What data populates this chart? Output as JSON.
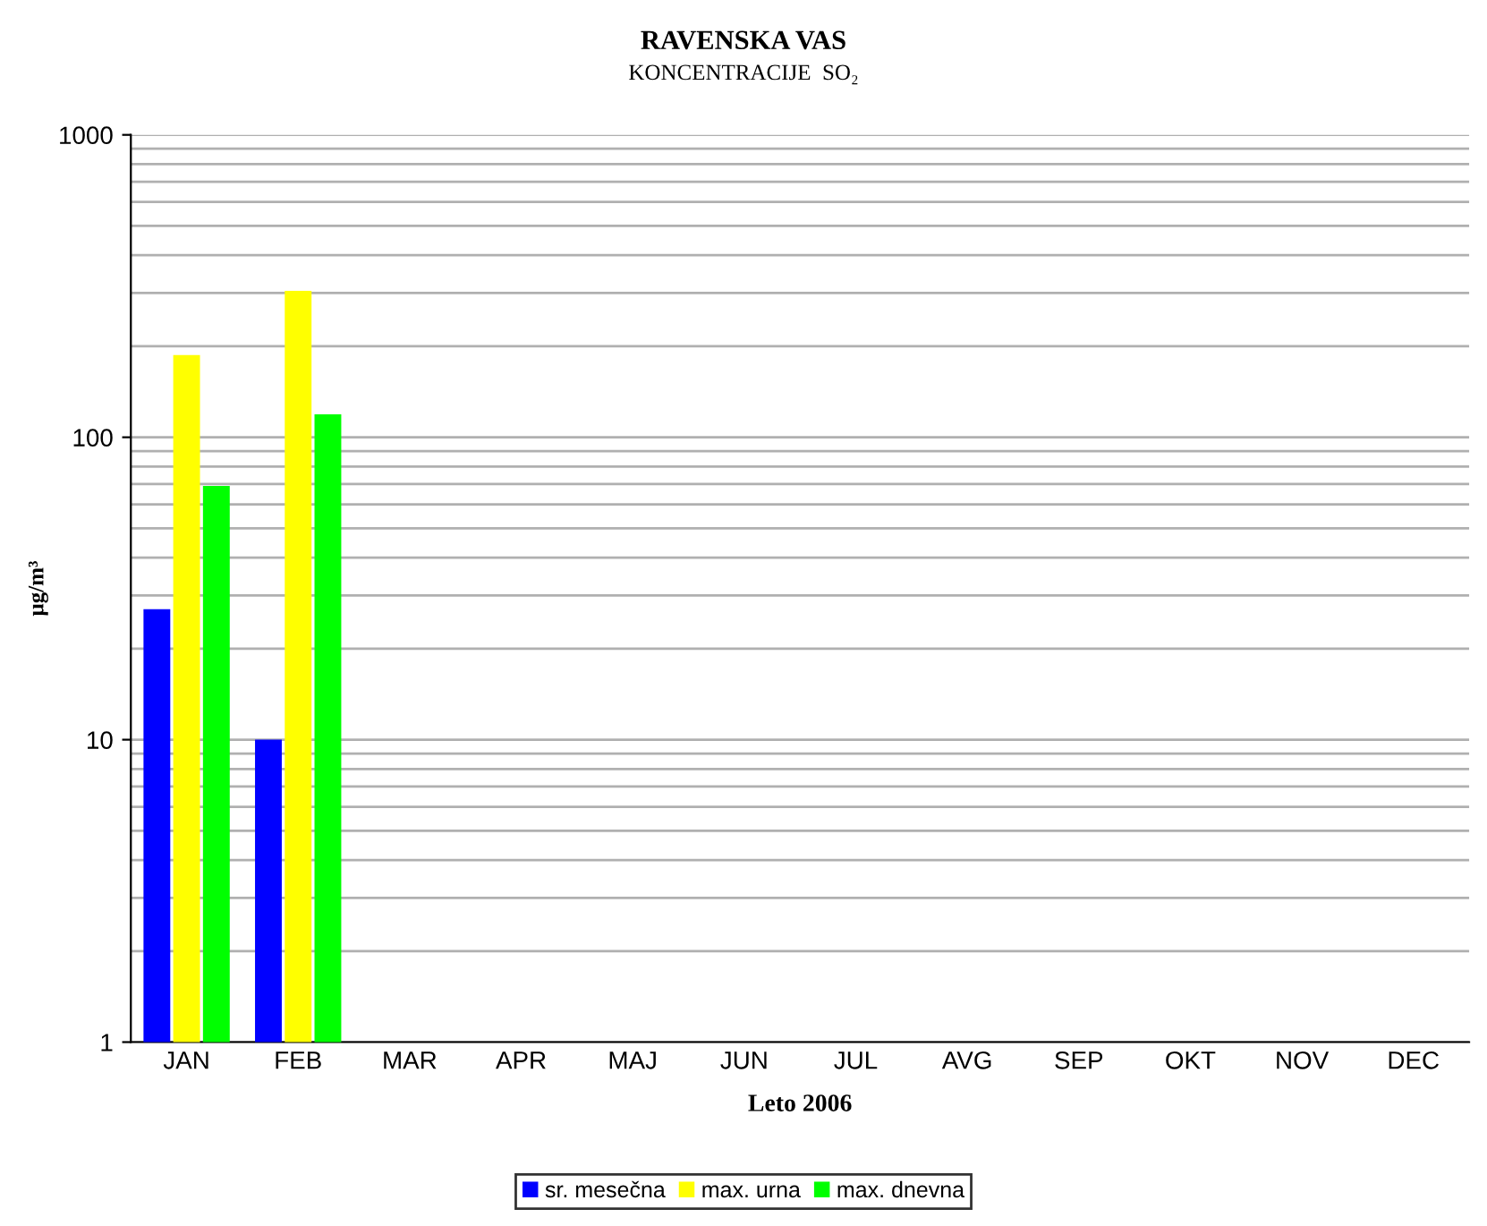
{
  "chart_data": {
    "type": "bar",
    "title": "RAVENSKA VAS",
    "subtitle": "KONCENTRACIJE  SO₂",
    "xlabel": "Leto 2006",
    "ylabel": "µg/m³",
    "categories": [
      "JAN",
      "FEB",
      "MAR",
      "APR",
      "MAJ",
      "JUN",
      "JUL",
      "AVG",
      "SEP",
      "OKT",
      "NOV",
      "DEC"
    ],
    "series": [
      {
        "name": "sr. mesečna",
        "color": "#0000ff",
        "values": [
          27,
          10,
          null,
          null,
          null,
          null,
          null,
          null,
          null,
          null,
          null,
          null
        ]
      },
      {
        "name": "max. urna",
        "color": "#ffff00",
        "values": [
          187,
          305,
          null,
          null,
          null,
          null,
          null,
          null,
          null,
          null,
          null,
          null
        ]
      },
      {
        "name": "max. dnevna",
        "color": "#00ff00",
        "values": [
          69,
          119,
          null,
          null,
          null,
          null,
          null,
          null,
          null,
          null,
          null,
          null
        ]
      }
    ],
    "log": true,
    "ylim": [
      1,
      1000
    ],
    "yticks": [
      1,
      10,
      100,
      1000
    ],
    "grid": "y",
    "legend": "bottom"
  }
}
